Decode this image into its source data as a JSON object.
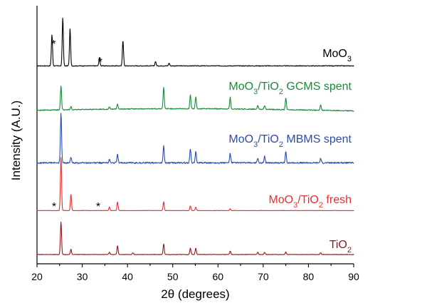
{
  "chart_data": {
    "type": "line",
    "xlabel": "2θ (degrees)",
    "ylabel": "Intensity (A.U.)",
    "xlim": [
      20,
      90
    ],
    "x_ticks": [
      "20",
      "30",
      "40",
      "50",
      "60",
      "70",
      "80",
      "90"
    ],
    "series": [
      {
        "name": "MoO3",
        "label_main": "MoO",
        "label_sub": "3",
        "label_suffix": "",
        "color": "#000000",
        "offset": 4,
        "peaks": [
          [
            23.3,
            0.55
          ],
          [
            25.7,
            0.85
          ],
          [
            27.3,
            0.65
          ],
          [
            33.8,
            0.15
          ],
          [
            39.0,
            0.45
          ],
          [
            46.2,
            0.08
          ],
          [
            49.2,
            0.05
          ]
        ]
      },
      {
        "name": "MoO3/TiO2 GCMS spent",
        "label_main": "MoO",
        "label_sub": "3",
        "label_mid": "/TiO",
        "label_sub2": "2",
        "label_suffix": " GCMS spent",
        "color": "#1b8a3a",
        "offset": 3,
        "peaks": [
          [
            25.3,
            0.62
          ],
          [
            27.5,
            0.08
          ],
          [
            36.0,
            0.06
          ],
          [
            37.8,
            0.13
          ],
          [
            48.0,
            0.55
          ],
          [
            53.9,
            0.35
          ],
          [
            55.1,
            0.3
          ],
          [
            62.7,
            0.3
          ],
          [
            68.8,
            0.1
          ],
          [
            70.3,
            0.1
          ],
          [
            75.0,
            0.3
          ],
          [
            82.7,
            0.15
          ]
        ]
      },
      {
        "name": "MoO3/TiO2 MBMS spent",
        "label_main": "MoO",
        "label_sub": "3",
        "label_mid": "/TiO",
        "label_sub2": "2",
        "label_suffix": " MBMS spent",
        "color": "#2a4da8",
        "offset": 2,
        "peaks": [
          [
            25.3,
            0.88
          ],
          [
            27.5,
            0.1
          ],
          [
            36.0,
            0.06
          ],
          [
            37.8,
            0.15
          ],
          [
            48.0,
            0.3
          ],
          [
            53.9,
            0.25
          ],
          [
            55.1,
            0.2
          ],
          [
            62.7,
            0.17
          ],
          [
            68.8,
            0.08
          ],
          [
            70.3,
            0.12
          ],
          [
            75.0,
            0.2
          ],
          [
            82.7,
            0.08
          ]
        ]
      },
      {
        "name": "MoO3/TiO2 fresh",
        "label_main": "MoO",
        "label_sub": "3",
        "label_mid": "/TiO",
        "label_sub2": "2",
        "label_suffix": " fresh",
        "color": "#e03232",
        "offset": 1,
        "peaks": [
          [
            25.3,
            0.92
          ],
          [
            27.5,
            0.28
          ],
          [
            36.0,
            0.06
          ],
          [
            37.8,
            0.15
          ],
          [
            48.0,
            0.15
          ],
          [
            53.9,
            0.08
          ],
          [
            55.1,
            0.06
          ],
          [
            62.7,
            0.03
          ]
        ]
      },
      {
        "name": "TiO2",
        "label_main": "TiO",
        "label_sub": "2",
        "label_suffix": "",
        "color": "#8b1a1a",
        "offset": 0,
        "peaks": [
          [
            25.3,
            0.92
          ],
          [
            27.5,
            0.15
          ],
          [
            36.0,
            0.06
          ],
          [
            37.8,
            0.25
          ],
          [
            41.2,
            0.05
          ],
          [
            48.0,
            0.3
          ],
          [
            53.9,
            0.18
          ],
          [
            55.1,
            0.18
          ],
          [
            62.7,
            0.1
          ],
          [
            68.8,
            0.06
          ],
          [
            70.3,
            0.06
          ],
          [
            75.0,
            0.07
          ],
          [
            82.7,
            0.05
          ]
        ]
      }
    ],
    "annotations": [
      {
        "text": "*",
        "x": 23.7,
        "series": 0,
        "position": "above"
      },
      {
        "text": "*",
        "x": 33.5,
        "series": 0,
        "position": "above"
      },
      {
        "text": "*",
        "x": 23.7,
        "series": 3,
        "position": "beside"
      },
      {
        "text": "*",
        "x": 33.5,
        "series": 3,
        "position": "beside"
      }
    ]
  }
}
